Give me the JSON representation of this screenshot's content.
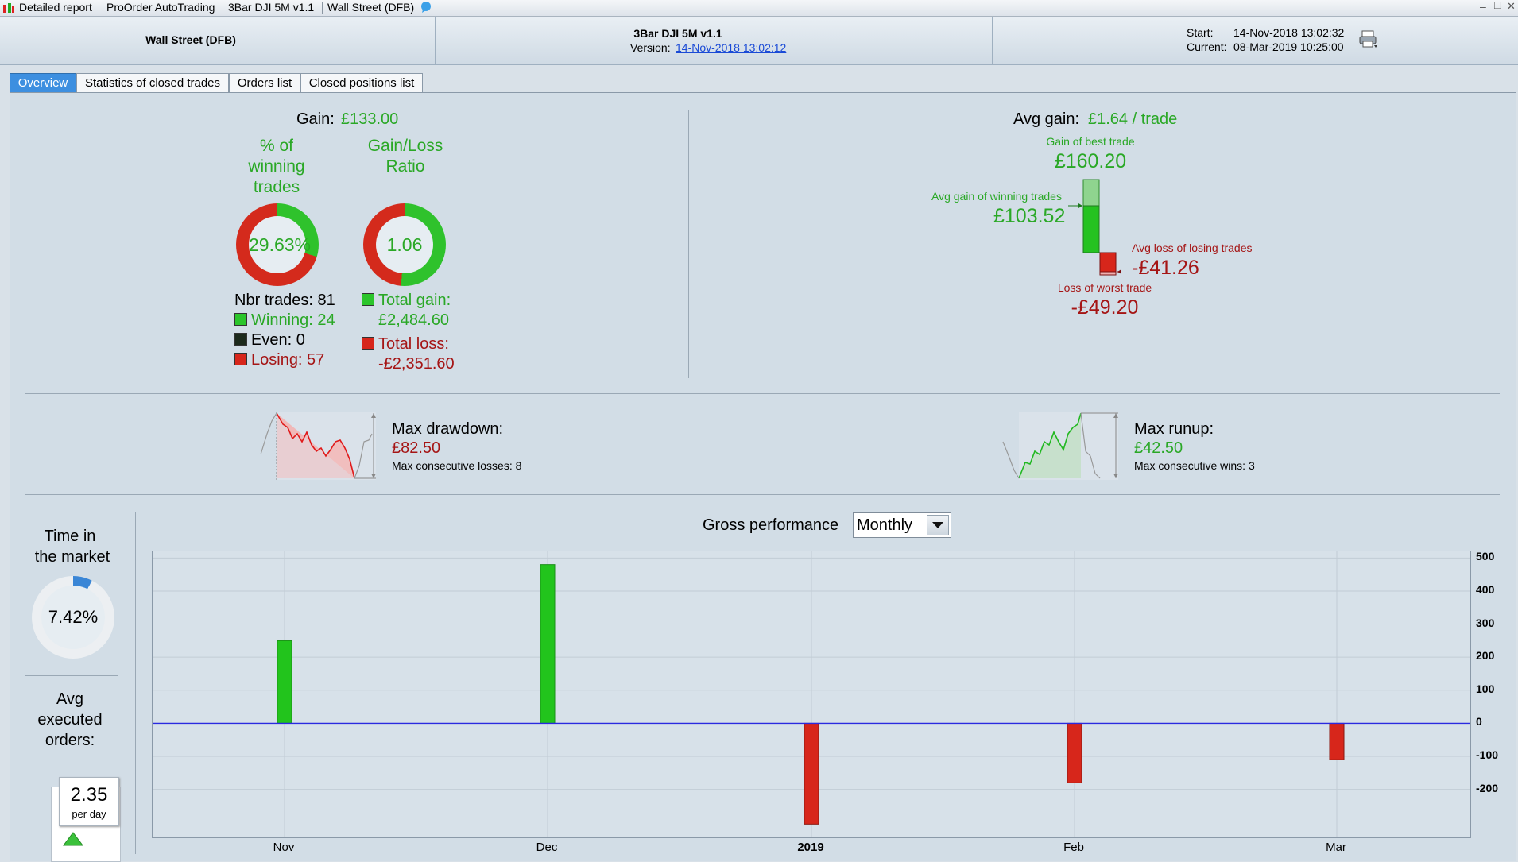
{
  "titlebar": {
    "items": [
      "Detailed report",
      "ProOrder AutoTrading",
      "3Bar DJI 5M v1.1",
      "Wall Street (DFB)"
    ],
    "controls": [
      "–",
      "□",
      "✕"
    ]
  },
  "header": {
    "market": "Wall Street (DFB)",
    "strategy": "3Bar DJI 5M v1.1",
    "version_label": "Version:",
    "version_link": "14-Nov-2018 13:02:12",
    "start_label": "Start:",
    "start_value": "14-Nov-2018 13:02:32",
    "current_label": "Current:",
    "current_value": "08-Mar-2019 10:25:00"
  },
  "tabs": [
    "Overview",
    "Statistics of closed trades",
    "Orders list",
    "Closed positions list"
  ],
  "overview": {
    "gain_label": "Gain:",
    "gain_value": "£133.00",
    "winning_pct_title_l1": "% of",
    "winning_pct_title_l2": "winning",
    "winning_pct_title_l3": "trades",
    "winning_pct": "29.63%",
    "winning_pct_fraction": 0.2963,
    "glratio_title_l1": "Gain/Loss",
    "glratio_title_l2": "Ratio",
    "glratio": "1.06",
    "glratio_fraction": 0.5144,
    "nbr_trades": "Nbr trades: 81",
    "winning": "Winning: 24",
    "even": "Even: 0",
    "losing": "Losing: 57",
    "total_gain_label": "Total gain:",
    "total_gain_value": "£2,484.60",
    "total_loss_label": "Total loss:",
    "total_loss_value": "-£2,351.60",
    "avg_gain_label": "Avg gain:",
    "avg_gain_value": "£1.64 / trade",
    "best_trade_label": "Gain of best trade",
    "best_trade_value": "£160.20",
    "avg_win_label": "Avg gain of winning trades",
    "avg_win_value": "£103.52",
    "avg_loss_label": "Avg loss of losing trades",
    "avg_loss_value": "-£41.26",
    "worst_trade_label": "Loss of worst trade",
    "worst_trade_value": "-£49.20",
    "max_drawdown_label": "Max drawdown:",
    "max_drawdown_value": "£82.50",
    "max_consec_losses": "Max consecutive losses: 8",
    "max_runup_label": "Max runup:",
    "max_runup_value": "£42.50",
    "max_consec_wins": "Max consecutive wins: 3",
    "time_in_market_l1": "Time in",
    "time_in_market_l2": "the market",
    "time_in_market_value": "7.42%",
    "time_in_market_fraction": 0.0742,
    "avg_orders_l1": "Avg",
    "avg_orders_l2": "executed",
    "avg_orders_l3": "orders:",
    "avg_orders_value": "2.35",
    "avg_orders_unit": "per day"
  },
  "performance": {
    "title": "Gross performance",
    "period_selected": "Monthly"
  },
  "colors": {
    "green": "#2aa826",
    "red": "#a51515",
    "bar_green": "#22c41c",
    "bar_red": "#d7261b",
    "zero_line": "#2a2ae0",
    "tab_active": "#3d8fe0"
  },
  "chart_data": {
    "type": "bar",
    "title": "Gross performance",
    "categories": [
      "Nov",
      "Dec",
      "2019",
      "Feb",
      "Mar"
    ],
    "values": [
      250,
      480,
      -305,
      -180,
      -110
    ],
    "ylim": [
      -345,
      520
    ],
    "yticks": [
      500,
      400,
      300,
      200,
      100,
      0,
      -100,
      -200
    ],
    "ytick_labels": [
      "500",
      "400",
      "300",
      "200",
      "100",
      "0",
      "-100",
      "-200"
    ],
    "grid": true
  }
}
